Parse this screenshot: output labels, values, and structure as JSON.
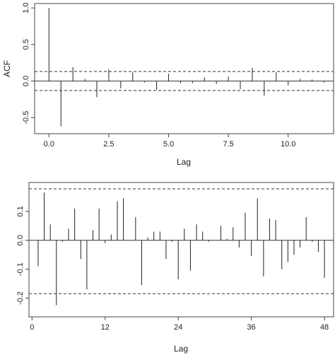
{
  "chart_data": [
    {
      "type": "bar",
      "subtype": "acf-stem",
      "title": "",
      "xlabel": "Lag",
      "ylabel": "ACF",
      "xlim": [
        -0.6,
        11.9
      ],
      "ylim": [
        -0.72,
        1.06
      ],
      "xticks": [
        0,
        2.5,
        5,
        7.5,
        10
      ],
      "xtick_labels": [
        "0.0",
        "2.5",
        "5.0",
        "7.5",
        "10.0"
      ],
      "yticks": [
        -0.5,
        0,
        0.5,
        1
      ],
      "ytick_labels": [
        "-0.5",
        "0.0",
        "0.5",
        "1.0"
      ],
      "confidence_band": [
        -0.13,
        0.13
      ],
      "x": [
        0,
        0.5,
        1,
        1.5,
        2,
        2.5,
        3,
        3.5,
        4,
        4.5,
        5,
        5.5,
        6,
        6.5,
        7,
        7.5,
        8,
        8.5,
        9,
        9.5,
        10,
        10.5,
        11,
        11.5
      ],
      "values": [
        1.0,
        -0.62,
        0.19,
        0.03,
        -0.22,
        0.16,
        -0.1,
        0.12,
        -0.02,
        -0.12,
        0.1,
        -0.03,
        -0.03,
        0.05,
        -0.04,
        0.06,
        -0.11,
        0.18,
        -0.2,
        0.12,
        -0.06,
        0.03,
        0.02,
        -0.02
      ],
      "grid": false,
      "legend": "none"
    },
    {
      "type": "bar",
      "subtype": "acf-stem",
      "title": "",
      "xlabel": "Lag",
      "ylabel": "",
      "xlim": [
        -0.5,
        49.5
      ],
      "ylim": [
        -0.265,
        0.2
      ],
      "xticks": [
        0,
        12,
        24,
        36,
        48
      ],
      "xtick_labels": [
        "0",
        "12",
        "24",
        "36",
        "48"
      ],
      "yticks": [
        -0.2,
        -0.1,
        0,
        0.1
      ],
      "ytick_labels": [
        "-0.2",
        "-0.1",
        "0.0",
        "0.1"
      ],
      "confidence_band": [
        -0.185,
        0.178
      ],
      "x": [
        1,
        2,
        3,
        4,
        5,
        6,
        7,
        8,
        9,
        10,
        11,
        12,
        13,
        14,
        15,
        16,
        17,
        18,
        19,
        20,
        21,
        22,
        23,
        24,
        25,
        26,
        27,
        28,
        29,
        30,
        31,
        32,
        33,
        34,
        35,
        36,
        37,
        38,
        39,
        40,
        41,
        42,
        43,
        44,
        45,
        46,
        47,
        48
      ],
      "values": [
        -0.09,
        0.165,
        0.055,
        -0.225,
        -0.005,
        0.04,
        0.11,
        -0.065,
        -0.17,
        0.035,
        0.11,
        -0.01,
        0.02,
        0.135,
        0.145,
        0.0,
        0.08,
        -0.155,
        0.01,
        0.03,
        0.03,
        -0.065,
        -0.005,
        -0.135,
        0.04,
        -0.105,
        0.055,
        0.03,
        -0.005,
        0.0,
        0.05,
        0.005,
        0.045,
        -0.025,
        0.095,
        -0.055,
        0.145,
        -0.125,
        0.075,
        0.07,
        -0.1,
        -0.075,
        -0.05,
        -0.025,
        0.08,
        -0.005,
        -0.04,
        -0.13
      ],
      "grid": false,
      "legend": "none"
    }
  ]
}
